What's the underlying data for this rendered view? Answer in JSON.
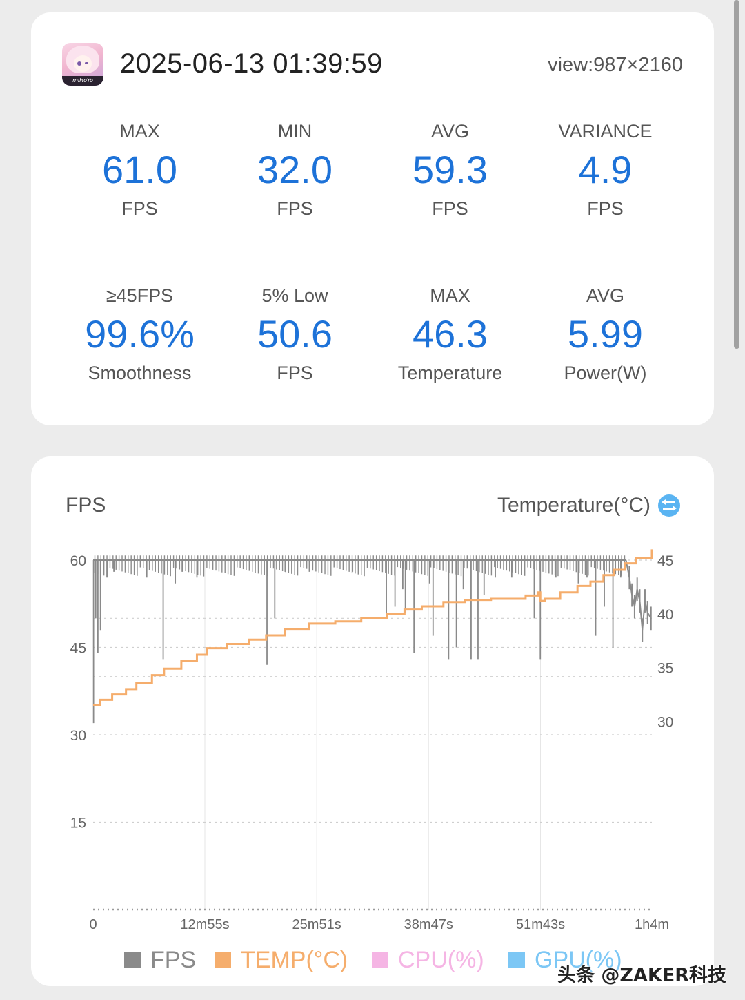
{
  "header": {
    "app_icon": "honkai-star-rail-app-icon",
    "app_icon_text": "miHoYo",
    "timestamp": "2025-06-13 01:39:59",
    "view_size": "view:987×2160"
  },
  "stats_row1": [
    {
      "label": "MAX",
      "value": "61.0",
      "unit": "FPS"
    },
    {
      "label": "MIN",
      "value": "32.0",
      "unit": "FPS"
    },
    {
      "label": "AVG",
      "value": "59.3",
      "unit": "FPS"
    },
    {
      "label": "VARIANCE",
      "value": "4.9",
      "unit": "FPS"
    }
  ],
  "stats_row2": [
    {
      "label": "≥45FPS",
      "value": "99.6%",
      "unit": "Smoothness"
    },
    {
      "label": "5% Low",
      "value": "50.6",
      "unit": "FPS"
    },
    {
      "label": "MAX",
      "value": "46.3",
      "unit": "Temperature"
    },
    {
      "label": "AVG",
      "value": "5.99",
      "unit": "Power(W)"
    }
  ],
  "chart": {
    "left_title": "FPS",
    "right_title": "Temperature(°C)",
    "swap_icon": "swap-axis-icon",
    "accent_color": "#1d72d8"
  },
  "chart_data": {
    "type": "line",
    "x_unit": "minutes",
    "x_ticks": [
      {
        "value": 0,
        "label": "0"
      },
      {
        "value": 12.92,
        "label": "12m55s"
      },
      {
        "value": 25.85,
        "label": "25m51s"
      },
      {
        "value": 38.78,
        "label": "38m47s"
      },
      {
        "value": 51.72,
        "label": "51m43s"
      },
      {
        "value": 64.6,
        "label": "1h4m"
      }
    ],
    "xlim": [
      0,
      64.6
    ],
    "y_left": {
      "ticks": [
        60,
        45,
        30,
        15
      ],
      "ylim": [
        0,
        60
      ]
    },
    "y_right": {
      "ticks": [
        45,
        40,
        35,
        30
      ],
      "ylim": [
        12.5,
        45
      ]
    },
    "grid": true,
    "legend_position": "bottom",
    "series": [
      {
        "name": "FPS",
        "axis": "left",
        "color": "#8a8a8a",
        "baseline": 60,
        "dips": [
          {
            "x": 0.05,
            "y": 32
          },
          {
            "x": 0.3,
            "y": 50
          },
          {
            "x": 0.55,
            "y": 44
          },
          {
            "x": 0.85,
            "y": 48
          },
          {
            "x": 1.6,
            "y": 57
          },
          {
            "x": 2.4,
            "y": 58
          },
          {
            "x": 6.2,
            "y": 57
          },
          {
            "x": 8.1,
            "y": 43
          },
          {
            "x": 9.5,
            "y": 56
          },
          {
            "x": 10.3,
            "y": 58
          },
          {
            "x": 12.0,
            "y": 57
          },
          {
            "x": 20.1,
            "y": 42
          },
          {
            "x": 21.0,
            "y": 50
          },
          {
            "x": 22.2,
            "y": 58
          },
          {
            "x": 25.0,
            "y": 58
          },
          {
            "x": 30.0,
            "y": 58
          },
          {
            "x": 33.9,
            "y": 50
          },
          {
            "x": 34.9,
            "y": 52
          },
          {
            "x": 35.8,
            "y": 55
          },
          {
            "x": 36.1,
            "y": 51
          },
          {
            "x": 37.1,
            "y": 44
          },
          {
            "x": 38.9,
            "y": 56
          },
          {
            "x": 39.3,
            "y": 47
          },
          {
            "x": 41.1,
            "y": 43
          },
          {
            "x": 42.0,
            "y": 45
          },
          {
            "x": 42.8,
            "y": 55
          },
          {
            "x": 43.7,
            "y": 43
          },
          {
            "x": 44.5,
            "y": 43
          },
          {
            "x": 45.2,
            "y": 54
          },
          {
            "x": 46.5,
            "y": 57
          },
          {
            "x": 48.4,
            "y": 57
          },
          {
            "x": 51.0,
            "y": 50
          },
          {
            "x": 51.7,
            "y": 43
          },
          {
            "x": 53.5,
            "y": 57
          },
          {
            "x": 56.1,
            "y": 56
          },
          {
            "x": 57.1,
            "y": 57
          },
          {
            "x": 58.1,
            "y": 47
          },
          {
            "x": 59.1,
            "y": 52
          },
          {
            "x": 60.1,
            "y": 45
          },
          {
            "x": 61.0,
            "y": 57
          }
        ],
        "tail": [
          {
            "x": 61.6,
            "y": 60
          },
          {
            "x": 62.0,
            "y": 57
          },
          {
            "x": 62.3,
            "y": 54
          },
          {
            "x": 62.6,
            "y": 52
          },
          {
            "x": 62.9,
            "y": 55
          },
          {
            "x": 63.2,
            "y": 53
          },
          {
            "x": 63.5,
            "y": 48
          },
          {
            "x": 63.8,
            "y": 53
          },
          {
            "x": 64.1,
            "y": 51
          },
          {
            "x": 64.5,
            "y": 50
          }
        ]
      },
      {
        "name": "TEMP(°C)",
        "axis": "right",
        "color": "#f5ad6c",
        "points": [
          [
            0,
            31.5
          ],
          [
            0.8,
            32.0
          ],
          [
            2.2,
            32.5
          ],
          [
            3.8,
            33.0
          ],
          [
            5.0,
            33.6
          ],
          [
            6.8,
            34.3
          ],
          [
            8.2,
            34.9
          ],
          [
            10.2,
            35.6
          ],
          [
            12.0,
            36.2
          ],
          [
            13.2,
            36.8
          ],
          [
            15.5,
            37.2
          ],
          [
            18.0,
            37.6
          ],
          [
            20.0,
            38.0
          ],
          [
            22.2,
            38.6
          ],
          [
            25.0,
            39.1
          ],
          [
            28.0,
            39.3
          ],
          [
            31.0,
            39.6
          ],
          [
            34.0,
            40.0
          ],
          [
            36.0,
            40.4
          ],
          [
            38.0,
            40.7
          ],
          [
            40.5,
            41.1
          ],
          [
            43.0,
            41.3
          ],
          [
            46.0,
            41.4
          ],
          [
            50.0,
            41.7
          ],
          [
            51.4,
            42.0
          ],
          [
            51.7,
            41.2
          ],
          [
            52.2,
            41.4
          ],
          [
            54.0,
            42.0
          ],
          [
            56.0,
            42.6
          ],
          [
            57.5,
            43.0
          ],
          [
            59.0,
            43.6
          ],
          [
            60.2,
            44.1
          ],
          [
            61.5,
            44.7
          ],
          [
            62.8,
            45.2
          ],
          [
            64.6,
            46.0
          ]
        ]
      }
    ],
    "legend": [
      {
        "name": "FPS",
        "color": "#8a8a8a"
      },
      {
        "name": "TEMP(°C)",
        "color": "#f5ad6c"
      },
      {
        "name": "CPU(%)",
        "color": "#f5b5e4"
      },
      {
        "name": "GPU(%)",
        "color": "#7cc7f5"
      }
    ]
  },
  "watermark": "头条 @ZAKER科技"
}
